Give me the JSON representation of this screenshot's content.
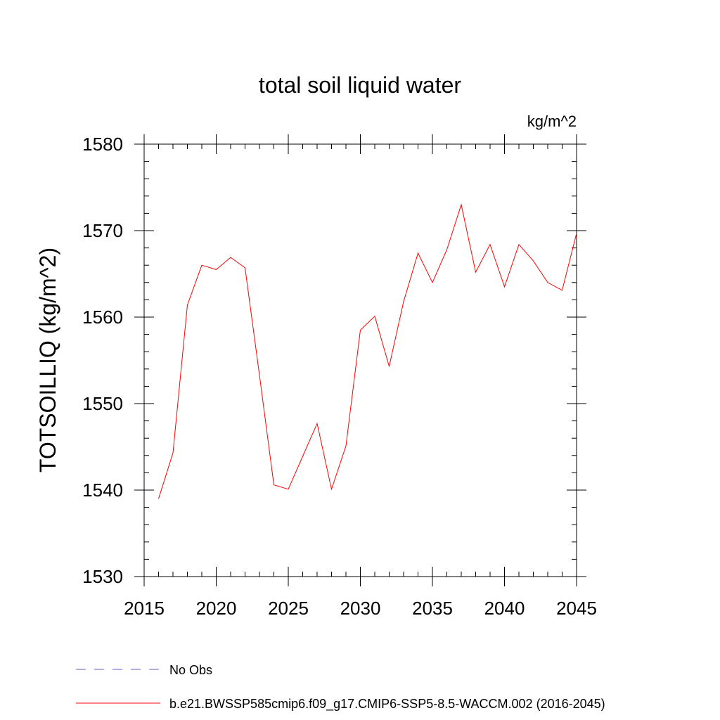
{
  "chart_data": {
    "type": "line",
    "title": "total soil liquid water",
    "units_label": "kg/m^2",
    "ylabel": "TOTSOILLIQ  (kg/m^2)",
    "xlabel": "",
    "xlim": [
      2015,
      2045
    ],
    "ylim": [
      1530,
      1580
    ],
    "x_ticks": [
      2015,
      2020,
      2025,
      2030,
      2035,
      2040,
      2045
    ],
    "x_minor_step": 1,
    "y_ticks": [
      1530,
      1540,
      1550,
      1560,
      1570,
      1580
    ],
    "y_minor_step": 2,
    "grid": false,
    "legend_placement": "bottom",
    "series": [
      {
        "name": "b.e21.BWSSP585cmip6.f09_g17.CMIP6-SSP5-8.5-WACCM.002 (2016-2045)",
        "color": "#ff0000",
        "style": "solid",
        "x": [
          2016,
          2017,
          2018,
          2019,
          2020,
          2021,
          2022,
          2023,
          2024,
          2025,
          2026,
          2027,
          2028,
          2029,
          2030,
          2031,
          2032,
          2033,
          2034,
          2035,
          2036,
          2037,
          2038,
          2039,
          2040,
          2041,
          2042,
          2043,
          2044,
          2045
        ],
        "values": [
          1539.0,
          1544.3,
          1561.4,
          1566.0,
          1565.5,
          1566.9,
          1565.7,
          1553.3,
          1540.6,
          1540.1,
          1543.9,
          1547.7,
          1540.1,
          1545.1,
          1558.5,
          1560.1,
          1554.3,
          1561.8,
          1567.4,
          1564.0,
          1567.8,
          1573.0,
          1565.2,
          1568.4,
          1563.5,
          1568.4,
          1566.5,
          1564.0,
          1563.1,
          1569.7
        ]
      }
    ],
    "legend": [
      {
        "label": "No Obs",
        "color": "#6a5acd",
        "style": "dashed"
      },
      {
        "label": "b.e21.BWSSP585cmip6.f09_g17.CMIP6-SSP5-8.5-WACCM.002 (2016-2045)",
        "color": "#ff0000",
        "style": "solid"
      }
    ]
  }
}
